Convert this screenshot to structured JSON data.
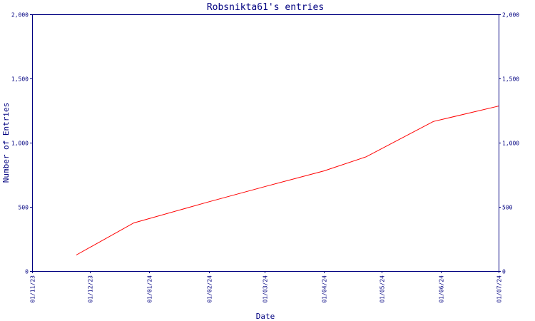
{
  "chart_data": {
    "type": "line",
    "title": "Robsnikta61's entries",
    "xlabel": "Date",
    "ylabel": "Number of Entries",
    "x_tick_labels": [
      "01/11/23",
      "01/12/23",
      "01/01/24",
      "01/02/24",
      "01/03/24",
      "01/04/24",
      "01/05/24",
      "01/06/24",
      "01/07/24"
    ],
    "x_range": [
      "2023-11-01",
      "2024-07-01"
    ],
    "y_tick_labels": [
      "0",
      "500",
      "1,000",
      "1,500",
      "2,000"
    ],
    "y_ticks": [
      0,
      500,
      1000,
      1500,
      2000
    ],
    "ylim": [
      0,
      2000
    ],
    "grid": false,
    "series": [
      {
        "color": "#ff0000",
        "points": [
          {
            "x": "2023-11-24",
            "y": 125
          },
          {
            "x": "2023-12-24",
            "y": 375
          },
          {
            "x": "2024-01-31",
            "y": 535
          },
          {
            "x": "2024-03-03",
            "y": 665
          },
          {
            "x": "2024-04-01",
            "y": 780
          },
          {
            "x": "2024-04-23",
            "y": 890
          },
          {
            "x": "2024-05-28",
            "y": 1165
          },
          {
            "x": "2024-07-01",
            "y": 1285
          }
        ]
      }
    ]
  }
}
